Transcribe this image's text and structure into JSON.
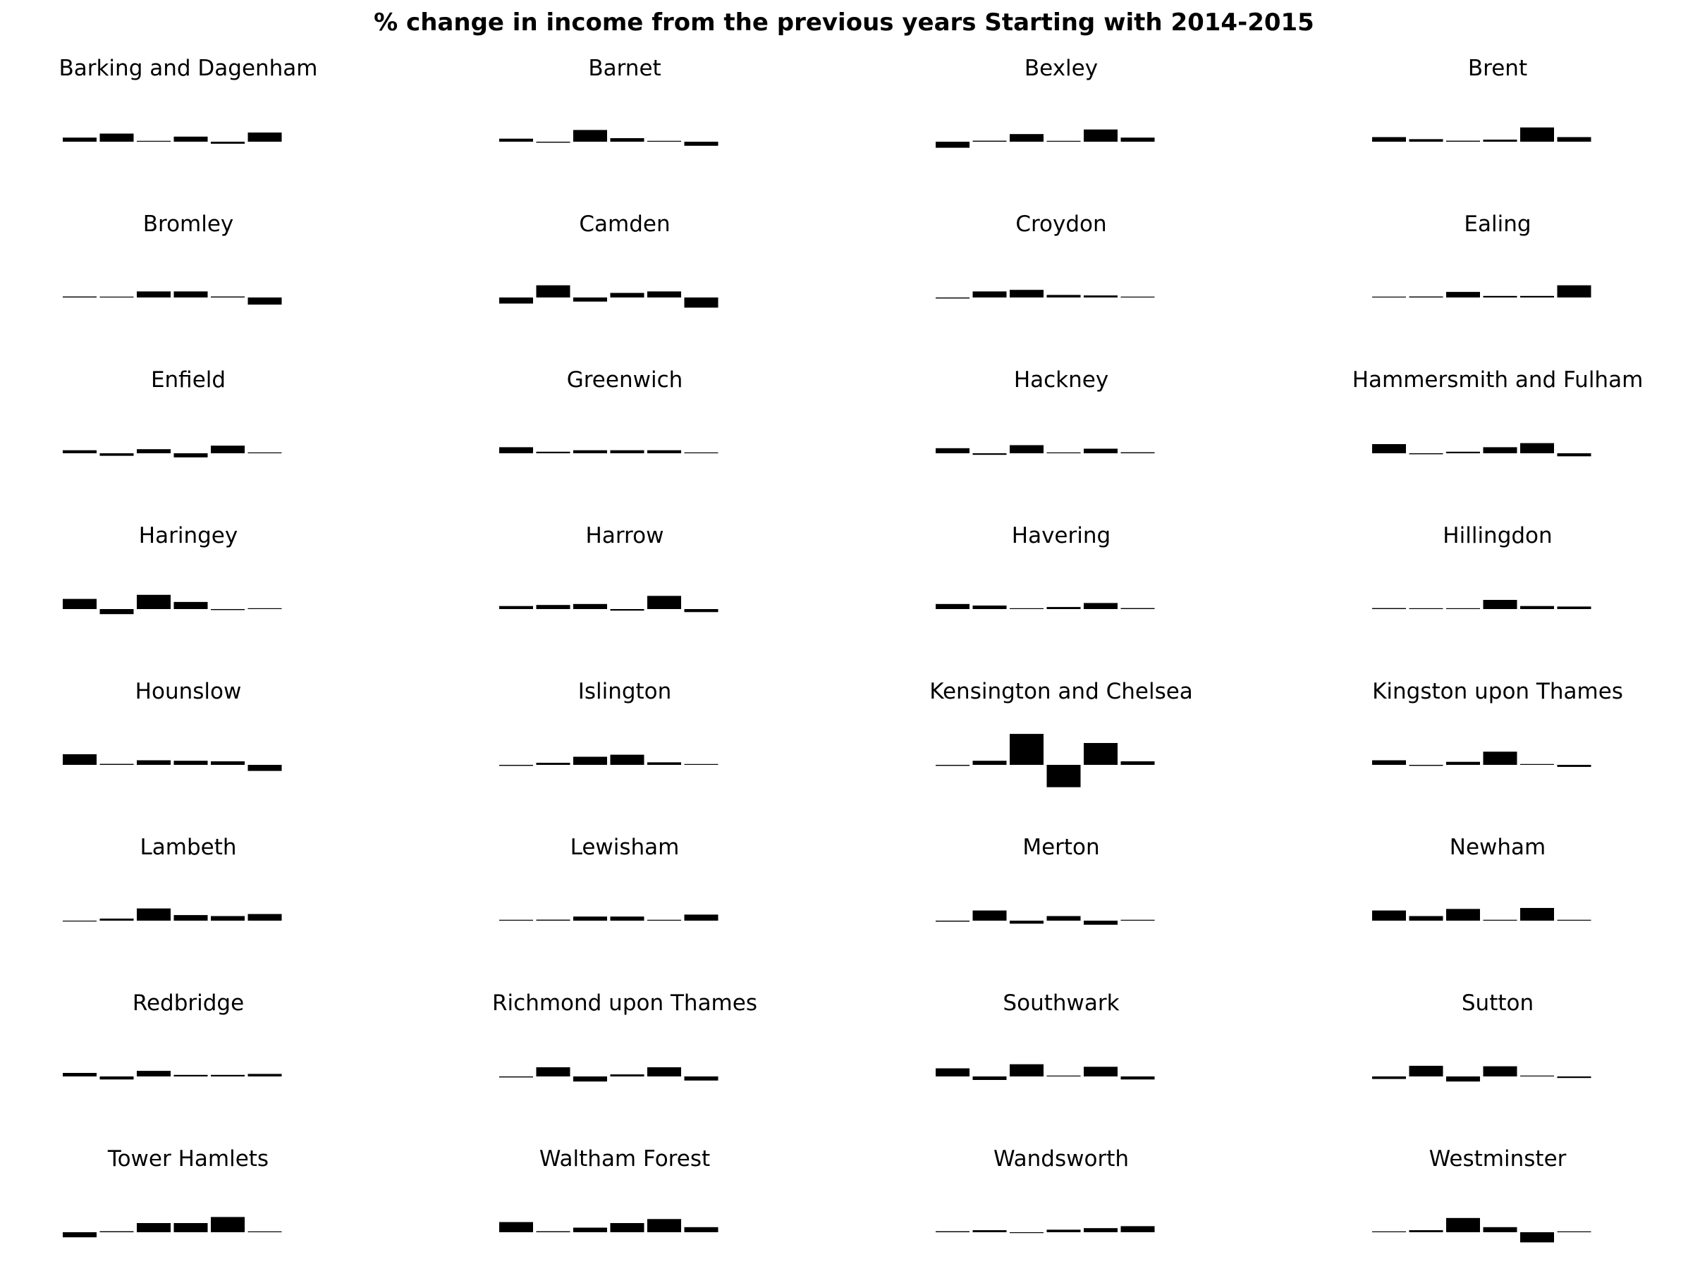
{
  "title": "% change in income from the previous years Starting with 2014-2015",
  "chart_data": {
    "type": "bar",
    "title": "% change in income from the previous years Starting with 2014-2015",
    "bars_per_panel": 6,
    "bar_color": "#000000",
    "axes_visible": false,
    "grid": false,
    "shared_value_scale": true,
    "value_range": [
      -4,
      7
    ],
    "note_values": "relative magnitudes estimated from bar heights; no axis is printed",
    "panels": [
      {
        "name": "Barking and Dagenham",
        "values": [
          0.8,
          1.6,
          0.1,
          1.0,
          -0.4,
          1.8
        ]
      },
      {
        "name": "Barnet",
        "values": [
          0.6,
          -0.2,
          2.3,
          0.7,
          0.05,
          -0.8
        ]
      },
      {
        "name": "Bexley",
        "values": [
          -1.2,
          0.2,
          1.5,
          0.05,
          2.4,
          0.8
        ]
      },
      {
        "name": "Brent",
        "values": [
          0.9,
          0.5,
          0.2,
          0.4,
          2.8,
          0.9
        ]
      },
      {
        "name": "Bromley",
        "values": [
          0.2,
          0.05,
          1.2,
          1.2,
          0.2,
          -1.4
        ]
      },
      {
        "name": "Camden",
        "values": [
          -1.2,
          2.4,
          -0.8,
          0.9,
          1.2,
          -2.0
        ]
      },
      {
        "name": "Croydon",
        "values": [
          -0.2,
          1.2,
          1.5,
          0.5,
          0.4,
          0.1
        ]
      },
      {
        "name": "Ealing",
        "values": [
          0.1,
          0.2,
          1.1,
          0.3,
          0.3,
          2.4
        ]
      },
      {
        "name": "Enfield",
        "values": [
          0.6,
          -0.5,
          0.8,
          -0.8,
          1.5,
          0.1
        ]
      },
      {
        "name": "Greenwich",
        "values": [
          1.2,
          0.3,
          0.6,
          0.6,
          0.6,
          0.1
        ]
      },
      {
        "name": "Hackney",
        "values": [
          1.0,
          -0.3,
          1.6,
          0.1,
          0.9,
          0.2
        ]
      },
      {
        "name": "Hammersmith and Fulham",
        "values": [
          1.8,
          -0.2,
          0.3,
          1.2,
          2.0,
          -0.6
        ]
      },
      {
        "name": "Haringey",
        "values": [
          2.0,
          -1.0,
          2.8,
          1.4,
          -0.2,
          0.1
        ]
      },
      {
        "name": "Harrow",
        "values": [
          0.6,
          0.8,
          1.0,
          -0.3,
          2.6,
          -0.6
        ]
      },
      {
        "name": "Havering",
        "values": [
          1.0,
          0.7,
          0.1,
          0.4,
          1.2,
          0.2
        ]
      },
      {
        "name": "Hillingdon",
        "values": [
          0.2,
          0.05,
          0.05,
          1.8,
          0.6,
          0.5
        ]
      },
      {
        "name": "Hounslow",
        "values": [
          2.1,
          0.2,
          0.9,
          0.8,
          0.7,
          -1.2
        ]
      },
      {
        "name": "Islington",
        "values": [
          -0.2,
          0.4,
          1.6,
          2.0,
          0.5,
          0.1
        ]
      },
      {
        "name": "Kensington and Chelsea",
        "values": [
          -0.2,
          0.8,
          6.1,
          -4.4,
          4.3,
          0.7
        ]
      },
      {
        "name": "Kingston upon Thames",
        "values": [
          0.9,
          -0.2,
          0.6,
          2.6,
          0.05,
          -0.4
        ]
      },
      {
        "name": "Lambeth",
        "values": [
          -0.1,
          0.4,
          2.4,
          1.1,
          0.9,
          1.3
        ]
      },
      {
        "name": "Lewisham",
        "values": [
          0.05,
          0.2,
          0.8,
          0.8,
          0.1,
          1.2
        ]
      },
      {
        "name": "Merton",
        "values": [
          -0.2,
          2.0,
          -0.6,
          0.9,
          -0.8,
          0.05
        ]
      },
      {
        "name": "Newham",
        "values": [
          2.0,
          0.9,
          2.3,
          0.1,
          2.5,
          0.1
        ]
      },
      {
        "name": "Redbridge",
        "values": [
          0.7,
          -0.6,
          1.1,
          0.3,
          0.3,
          0.5
        ]
      },
      {
        "name": "Richmond upon Thames",
        "values": [
          -0.2,
          1.8,
          -1.0,
          0.4,
          1.8,
          -0.8
        ]
      },
      {
        "name": "Southwark",
        "values": [
          1.6,
          -0.7,
          2.4,
          0.05,
          1.9,
          -0.6
        ]
      },
      {
        "name": "Sutton",
        "values": [
          -0.5,
          2.1,
          -1.0,
          2.0,
          0.05,
          -0.3
        ]
      },
      {
        "name": "Tower Hamlets",
        "values": [
          -1.0,
          0.2,
          1.8,
          1.8,
          3.0,
          0.1
        ]
      },
      {
        "name": "Waltham Forest",
        "values": [
          2.0,
          0.2,
          0.9,
          1.8,
          2.6,
          1.0
        ]
      },
      {
        "name": "Wandsworth",
        "values": [
          0.2,
          0.4,
          -0.1,
          0.5,
          0.8,
          1.2
        ]
      },
      {
        "name": "Westminster",
        "values": [
          0.1,
          0.4,
          2.8,
          1.0,
          -2.0,
          0.05
        ]
      }
    ]
  }
}
